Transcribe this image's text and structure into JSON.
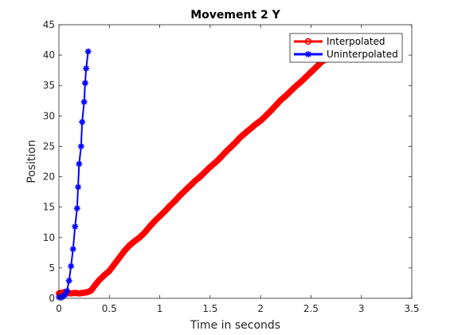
{
  "chart_data": {
    "type": "line",
    "title": "Movement 2 Y",
    "xlabel": "Time in seconds",
    "ylabel": "Position",
    "xlim": [
      0,
      3.5
    ],
    "ylim": [
      0,
      45
    ],
    "xticks": [
      0,
      0.5,
      1,
      1.5,
      2,
      2.5,
      3,
      3.5
    ],
    "xtick_labels": [
      "0",
      "0.5",
      "1",
      "1.5",
      "2",
      "2.5",
      "3",
      "3.5"
    ],
    "yticks": [
      0,
      5,
      10,
      15,
      20,
      25,
      30,
      35,
      40,
      45
    ],
    "ytick_labels": [
      "0",
      "5",
      "10",
      "15",
      "20",
      "25",
      "30",
      "35",
      "40",
      "45"
    ],
    "legend_position": "top-right",
    "series": [
      {
        "name": "Interpolated",
        "color": "#ff0000",
        "marker": "circle",
        "x": [
          0.0,
          0.05,
          0.08,
          0.12,
          0.16,
          0.2,
          0.24,
          0.28,
          0.32,
          0.36,
          0.4,
          0.45,
          0.5,
          0.55,
          0.6,
          0.65,
          0.7,
          0.75,
          0.8,
          0.85,
          0.9,
          0.95,
          1.0,
          1.05,
          1.1,
          1.15,
          1.2,
          1.25,
          1.3,
          1.35,
          1.4,
          1.45,
          1.5,
          1.55,
          1.6,
          1.65,
          1.7,
          1.75,
          1.8,
          1.85,
          1.9,
          1.95,
          2.0,
          2.05,
          2.1,
          2.15,
          2.2,
          2.25,
          2.3,
          2.35,
          2.4,
          2.45,
          2.5,
          2.55,
          2.6,
          2.65,
          2.7,
          2.75,
          2.8,
          2.85,
          2.9,
          2.95
        ],
        "y": [
          0.8,
          1.0,
          0.9,
          0.8,
          0.9,
          0.8,
          0.9,
          1.0,
          1.3,
          2.2,
          3.0,
          3.8,
          4.5,
          5.6,
          6.7,
          7.8,
          8.7,
          9.4,
          10.0,
          10.8,
          11.8,
          12.7,
          13.5,
          14.3,
          15.2,
          16.0,
          16.9,
          17.7,
          18.5,
          19.3,
          20.0,
          20.8,
          21.6,
          22.3,
          23.1,
          24.0,
          24.8,
          25.6,
          26.5,
          27.2,
          27.9,
          28.6,
          29.2,
          30.0,
          30.8,
          31.7,
          32.6,
          33.3,
          34.1,
          34.9,
          35.6,
          36.4,
          37.2,
          38.0,
          38.8,
          39.4,
          40.0,
          40.6,
          41.1,
          41.7,
          42.3,
          42.9
        ]
      },
      {
        "name": "Uninterpolated",
        "color": "#0000ff",
        "marker": "asterisk",
        "x": [
          0.0,
          0.02,
          0.04,
          0.06,
          0.08,
          0.1,
          0.12,
          0.14,
          0.16,
          0.18,
          0.19,
          0.2,
          0.22,
          0.23,
          0.25,
          0.26,
          0.27,
          0.29
        ],
        "y": [
          0.2,
          0.1,
          0.3,
          0.6,
          1.2,
          2.9,
          5.3,
          8.1,
          11.8,
          14.8,
          18.3,
          22.1,
          25.0,
          29.0,
          32.3,
          35.4,
          37.8,
          40.6
        ]
      }
    ]
  }
}
